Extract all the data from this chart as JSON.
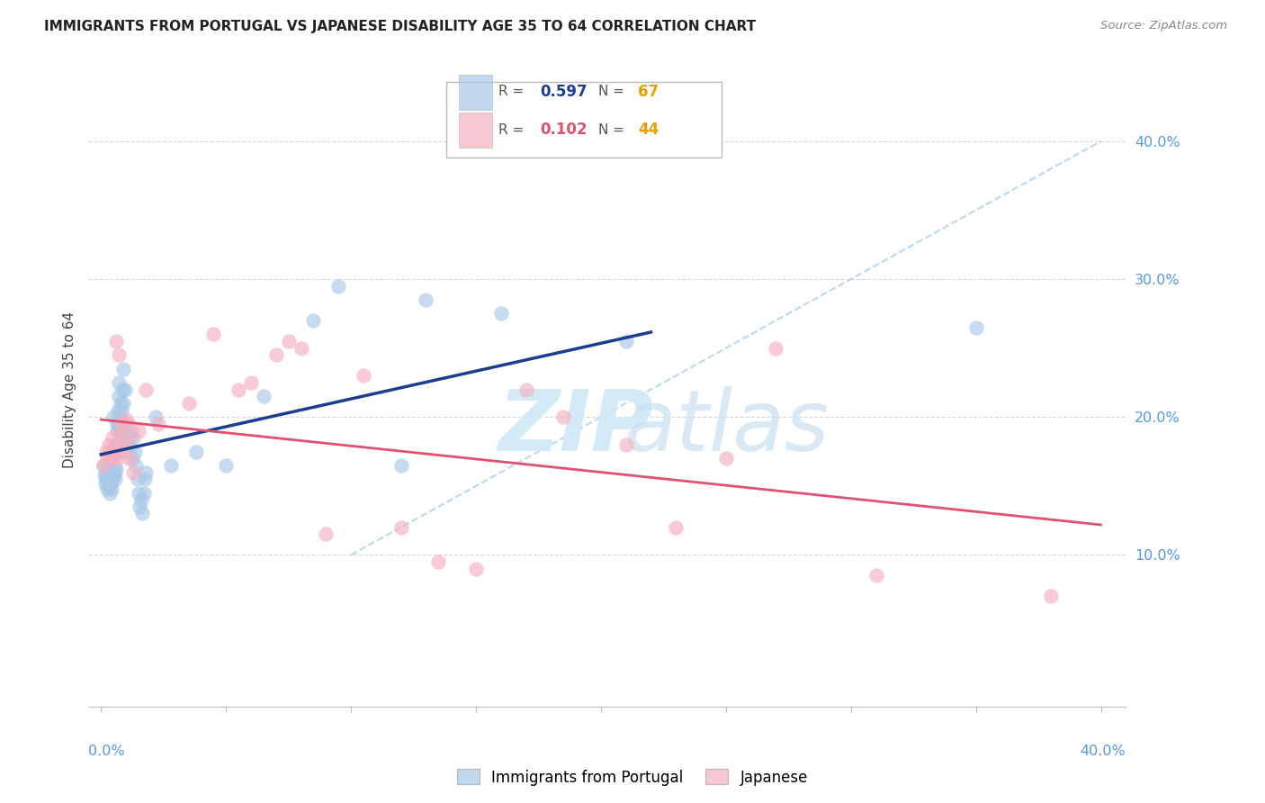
{
  "title": "IMMIGRANTS FROM PORTUGAL VS JAPANESE DISABILITY AGE 35 TO 64 CORRELATION CHART",
  "source": "Source: ZipAtlas.com",
  "ylabel": "Disability Age 35 to 64",
  "xlim": [
    -0.5,
    41.0
  ],
  "ylim": [
    -1.0,
    45.0
  ],
  "y_ticks": [
    10.0,
    20.0,
    30.0,
    40.0
  ],
  "blue_R": "0.597",
  "blue_N": "67",
  "pink_R": "0.102",
  "pink_N": "44",
  "blue_color": "#a8c8e8",
  "pink_color": "#f5b0c0",
  "blue_line_color": "#1a3f8f",
  "pink_line_color": "#e05070",
  "diag_line_color": "#b8d8f0",
  "tick_color": "#5599dd",
  "grid_color": "#d8d8d8",
  "N_color": "#e8a000",
  "blue_scatter": [
    [
      0.1,
      16.5
    ],
    [
      0.15,
      15.8
    ],
    [
      0.18,
      15.2
    ],
    [
      0.2,
      16.0
    ],
    [
      0.22,
      15.5
    ],
    [
      0.25,
      14.8
    ],
    [
      0.28,
      16.2
    ],
    [
      0.3,
      15.0
    ],
    [
      0.32,
      15.8
    ],
    [
      0.35,
      14.5
    ],
    [
      0.38,
      16.5
    ],
    [
      0.4,
      15.2
    ],
    [
      0.42,
      14.8
    ],
    [
      0.45,
      15.5
    ],
    [
      0.48,
      16.0
    ],
    [
      0.5,
      15.8
    ],
    [
      0.52,
      16.5
    ],
    [
      0.55,
      16.0
    ],
    [
      0.58,
      15.5
    ],
    [
      0.6,
      16.2
    ],
    [
      0.62,
      17.5
    ],
    [
      0.65,
      19.5
    ],
    [
      0.68,
      20.5
    ],
    [
      0.7,
      21.5
    ],
    [
      0.72,
      22.5
    ],
    [
      0.75,
      20.0
    ],
    [
      0.78,
      21.0
    ],
    [
      0.8,
      19.5
    ],
    [
      0.82,
      20.5
    ],
    [
      0.85,
      22.0
    ],
    [
      0.88,
      21.0
    ],
    [
      0.9,
      23.5
    ],
    [
      0.95,
      22.0
    ],
    [
      1.0,
      19.0
    ],
    [
      1.05,
      18.5
    ],
    [
      1.1,
      18.0
    ],
    [
      1.15,
      17.5
    ],
    [
      1.2,
      19.0
    ],
    [
      1.25,
      17.0
    ],
    [
      1.3,
      18.5
    ],
    [
      1.35,
      17.5
    ],
    [
      1.4,
      16.5
    ],
    [
      1.45,
      15.5
    ],
    [
      1.5,
      14.5
    ],
    [
      1.55,
      13.5
    ],
    [
      1.6,
      14.0
    ],
    [
      1.65,
      13.0
    ],
    [
      1.7,
      14.5
    ],
    [
      1.75,
      15.5
    ],
    [
      1.8,
      16.0
    ],
    [
      0.5,
      20.0
    ],
    [
      0.6,
      18.0
    ],
    [
      0.65,
      19.0
    ],
    [
      0.7,
      19.5
    ],
    [
      0.75,
      18.8
    ],
    [
      2.2,
      20.0
    ],
    [
      2.8,
      16.5
    ],
    [
      3.8,
      17.5
    ],
    [
      5.0,
      16.5
    ],
    [
      6.5,
      21.5
    ],
    [
      8.5,
      27.0
    ],
    [
      9.5,
      29.5
    ],
    [
      12.0,
      16.5
    ],
    [
      13.0,
      28.5
    ],
    [
      16.0,
      27.5
    ],
    [
      21.0,
      25.5
    ],
    [
      35.0,
      26.5
    ]
  ],
  "pink_scatter": [
    [
      0.1,
      16.5
    ],
    [
      0.2,
      17.5
    ],
    [
      0.25,
      17.0
    ],
    [
      0.3,
      18.0
    ],
    [
      0.35,
      17.5
    ],
    [
      0.4,
      17.0
    ],
    [
      0.45,
      18.5
    ],
    [
      0.5,
      17.8
    ],
    [
      0.55,
      17.5
    ],
    [
      0.6,
      25.5
    ],
    [
      0.65,
      17.0
    ],
    [
      0.7,
      24.5
    ],
    [
      0.75,
      18.8
    ],
    [
      0.8,
      19.5
    ],
    [
      0.85,
      17.5
    ],
    [
      0.9,
      18.0
    ],
    [
      1.0,
      19.8
    ],
    [
      1.1,
      19.5
    ],
    [
      1.15,
      18.5
    ],
    [
      1.3,
      16.0
    ],
    [
      1.5,
      19.0
    ],
    [
      1.8,
      22.0
    ],
    [
      2.3,
      19.5
    ],
    [
      3.5,
      21.0
    ],
    [
      4.5,
      26.0
    ],
    [
      5.5,
      22.0
    ],
    [
      6.0,
      22.5
    ],
    [
      7.0,
      24.5
    ],
    [
      7.5,
      25.5
    ],
    [
      8.0,
      25.0
    ],
    [
      9.0,
      11.5
    ],
    [
      10.5,
      23.0
    ],
    [
      12.0,
      12.0
    ],
    [
      13.5,
      9.5
    ],
    [
      15.0,
      9.0
    ],
    [
      17.0,
      22.0
    ],
    [
      18.5,
      20.0
    ],
    [
      21.0,
      18.0
    ],
    [
      23.0,
      12.0
    ],
    [
      25.0,
      17.0
    ],
    [
      27.0,
      25.0
    ],
    [
      31.0,
      8.5
    ],
    [
      38.0,
      7.0
    ],
    [
      1.1,
      17.0
    ]
  ]
}
